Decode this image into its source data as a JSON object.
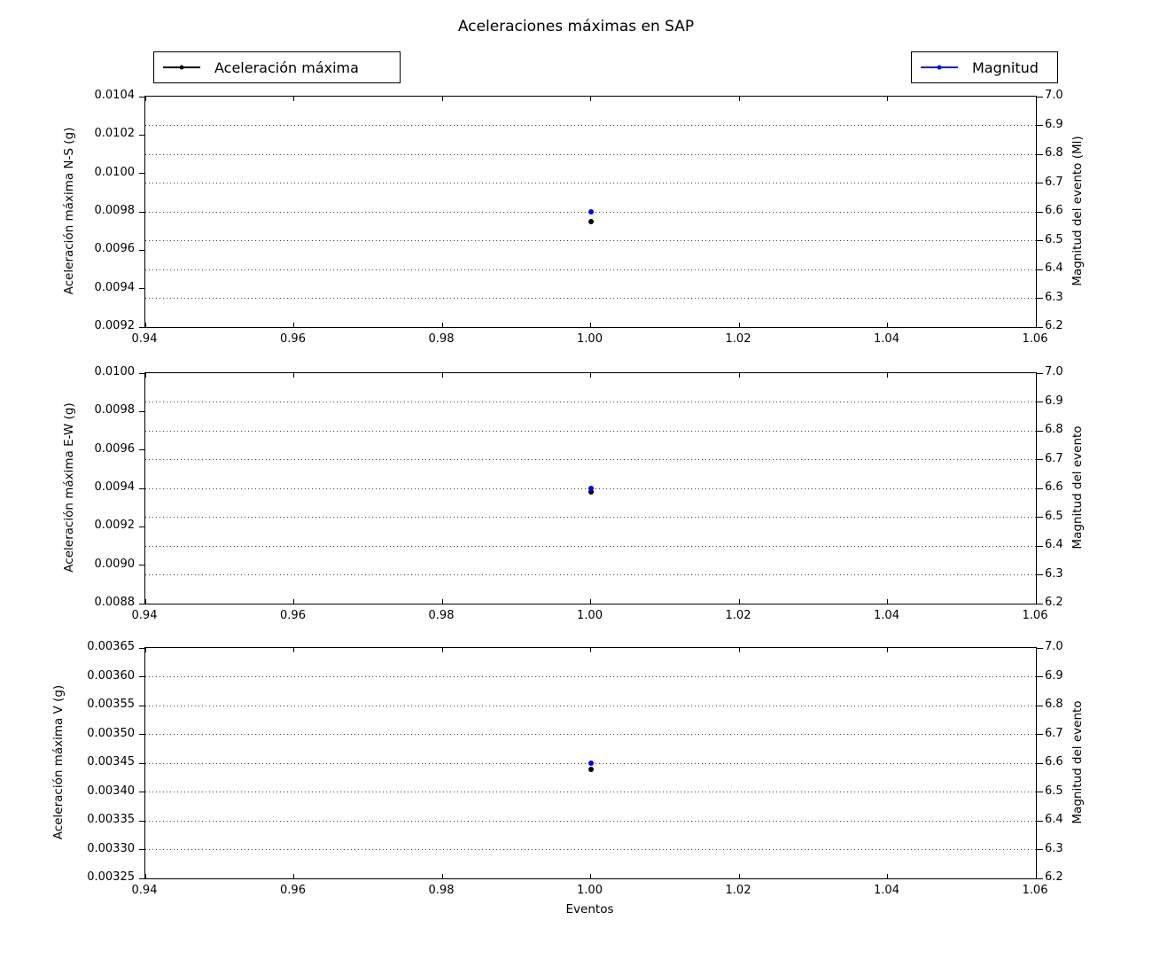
{
  "figure": {
    "title": "Aceleraciones máximas en SAP",
    "xlabel": "Eventos",
    "background": "#ffffff"
  },
  "legends": {
    "acceleration": {
      "label": "Aceleración máxima",
      "color": "#000000",
      "marker": "line-dot"
    },
    "magnitude": {
      "label": "Magnitud",
      "color": "#0000ff",
      "marker": "line-dot"
    }
  },
  "chart_data": [
    {
      "type": "scatter",
      "name": "N-S",
      "ylabel_left": "Aceleración máxima N-S (g)",
      "ylabel_right": "Magnitud del evento (Ml)",
      "xlim": [
        0.94,
        1.06
      ],
      "ylim_left": [
        0.0092,
        0.0104
      ],
      "ylim_right": [
        6.2,
        7.0
      ],
      "x_tick_labels": [
        "0.94",
        "0.96",
        "0.98",
        "1.00",
        "1.02",
        "1.04",
        "1.06"
      ],
      "y_tick_labels_left": [
        "0.0092",
        "0.0094",
        "0.0096",
        "0.0098",
        "0.0100",
        "0.0102",
        "0.0104"
      ],
      "y_tick_labels_right": [
        "6.2",
        "6.3",
        "6.4",
        "6.5",
        "6.6",
        "6.7",
        "6.8",
        "6.9",
        "7.0"
      ],
      "grid_values_right_axis": [
        6.3,
        6.4,
        6.5,
        6.6,
        6.7,
        6.8,
        6.9
      ],
      "grid_style": "dotted",
      "legend_position": "outside-top",
      "series": [
        {
          "name": "Aceleración máxima",
          "axis": "left",
          "color": "#000000",
          "x": [
            1.0
          ],
          "y": [
            0.00975
          ]
        },
        {
          "name": "Magnitud",
          "axis": "right",
          "color": "#0000ff",
          "x": [
            1.0
          ],
          "y": [
            6.6
          ]
        }
      ]
    },
    {
      "type": "scatter",
      "name": "E-W",
      "ylabel_left": "Aceleración máxima E-W (g)",
      "ylabel_right": "Magnitud del evento",
      "xlim": [
        0.94,
        1.06
      ],
      "ylim_left": [
        0.0088,
        0.01
      ],
      "ylim_right": [
        6.2,
        7.0
      ],
      "x_tick_labels": [
        "0.94",
        "0.96",
        "0.98",
        "1.00",
        "1.02",
        "1.04",
        "1.06"
      ],
      "y_tick_labels_left": [
        "0.0088",
        "0.0090",
        "0.0092",
        "0.0094",
        "0.0096",
        "0.0098",
        "0.0100"
      ],
      "y_tick_labels_right": [
        "6.2",
        "6.3",
        "6.4",
        "6.5",
        "6.6",
        "6.7",
        "6.8",
        "6.9",
        "7.0"
      ],
      "grid_values_right_axis": [
        6.3,
        6.4,
        6.5,
        6.6,
        6.7,
        6.8,
        6.9
      ],
      "grid_style": "dotted",
      "series": [
        {
          "name": "Aceleración máxima",
          "axis": "left",
          "color": "#000000",
          "x": [
            1.0
          ],
          "y": [
            0.00938
          ]
        },
        {
          "name": "Magnitud",
          "axis": "right",
          "color": "#0000ff",
          "x": [
            1.0
          ],
          "y": [
            6.6
          ]
        }
      ]
    },
    {
      "type": "scatter",
      "name": "V",
      "ylabel_left": "Aceleración máxima V (g)",
      "ylabel_right": "Magnitud del evento",
      "xlabel": "Eventos",
      "xlim": [
        0.94,
        1.06
      ],
      "ylim_left": [
        0.00325,
        0.00365
      ],
      "ylim_right": [
        6.2,
        7.0
      ],
      "x_tick_labels": [
        "0.94",
        "0.96",
        "0.98",
        "1.00",
        "1.02",
        "1.04",
        "1.06"
      ],
      "y_tick_labels_left": [
        "0.00325",
        "0.00330",
        "0.00335",
        "0.00340",
        "0.00345",
        "0.00350",
        "0.00355",
        "0.00360",
        "0.00365"
      ],
      "y_tick_labels_right": [
        "6.2",
        "6.3",
        "6.4",
        "6.5",
        "6.6",
        "6.7",
        "6.8",
        "6.9",
        "7.0"
      ],
      "grid_values_right_axis": [
        6.3,
        6.4,
        6.5,
        6.6,
        6.7,
        6.8,
        6.9
      ],
      "grid_style": "dotted",
      "series": [
        {
          "name": "Aceleración máxima",
          "axis": "left",
          "color": "#000000",
          "x": [
            1.0
          ],
          "y": [
            0.00344
          ]
        },
        {
          "name": "Magnitud",
          "axis": "right",
          "color": "#0000ff",
          "x": [
            1.0
          ],
          "y": [
            6.6
          ]
        }
      ]
    }
  ]
}
